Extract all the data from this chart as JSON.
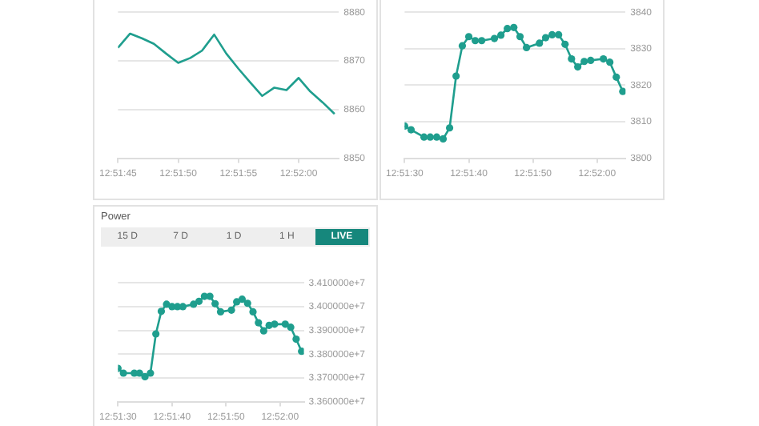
{
  "chart_data": [
    {
      "type": "line",
      "color": "#1f9e8e",
      "marker": "none",
      "line_style": "solid",
      "grid": "y",
      "legend": false,
      "x": [
        12.8625,
        12.86278,
        12.86306,
        12.86333,
        12.86361,
        12.86389,
        12.86417,
        12.86444,
        12.86472,
        12.865,
        12.86528,
        12.86556,
        12.86583,
        12.86611,
        12.86639,
        12.86667,
        12.86694,
        12.86722,
        12.8675
      ],
      "values": [
        8872.7,
        8875.6,
        8874.6,
        8873.5,
        8871.5,
        8869.6,
        8870.6,
        8872.1,
        8875.4,
        8871.5,
        8868.4,
        8865.5,
        8862.8,
        8864.5,
        8864.0,
        8866.5,
        8863.7,
        8861.5,
        8859.1
      ],
      "xlim": [
        12.8625,
        12.8676
      ],
      "xticks": [
        {
          "value": 12.8625,
          "label": "12:51:45"
        },
        {
          "value": 12.86389,
          "label": "12:51:50"
        },
        {
          "value": 12.86528,
          "label": "12:51:55"
        },
        {
          "value": 12.86667,
          "label": "12:52:00"
        }
      ],
      "ylim": [
        8850,
        8880
      ],
      "yticks": [
        8850,
        8860,
        8870,
        8880
      ]
    },
    {
      "type": "line",
      "color": "#1f9e8e",
      "marker": "circle",
      "line_style": "solid",
      "grid": "y",
      "legend": false,
      "x": [
        12.85833,
        12.85861,
        12.85917,
        12.85944,
        12.85972,
        12.86,
        12.86028,
        12.86056,
        12.86083,
        12.86111,
        12.86139,
        12.86167,
        12.86222,
        12.8625,
        12.86278,
        12.86306,
        12.86333,
        12.86361,
        12.86417,
        12.86444,
        12.86472,
        12.865,
        12.86528,
        12.86556,
        12.86583,
        12.86611,
        12.86639,
        12.86694,
        12.86722,
        12.8675,
        12.86778
      ],
      "values": [
        3808.8,
        3807.8,
        3805.8,
        3805.8,
        3805.8,
        3805.3,
        3808.3,
        3822.5,
        3830.8,
        3833.3,
        3832.2,
        3832.2,
        3832.8,
        3833.7,
        3835.5,
        3835.8,
        3833.3,
        3830.3,
        3831.5,
        3833,
        3833.8,
        3833.8,
        3831.2,
        3827.2,
        3825,
        3826.5,
        3826.8,
        3827.2,
        3826.3,
        3822.2,
        3818.3
      ],
      "xlim": [
        12.85833,
        12.8679
      ],
      "xticks": [
        {
          "value": 12.85833,
          "label": "12:51:30"
        },
        {
          "value": 12.86111,
          "label": "12:51:40"
        },
        {
          "value": 12.86389,
          "label": "12:51:50"
        },
        {
          "value": 12.86667,
          "label": "12:52:00"
        }
      ],
      "ylim": [
        3800,
        3840
      ],
      "yticks": [
        3800,
        3810,
        3820,
        3830,
        3840
      ]
    },
    {
      "type": "line",
      "title": "Power",
      "annotations": [
        "15 D",
        "7 D",
        "1 D",
        "1 H",
        "LIVE"
      ],
      "color": "#1f9e8e",
      "marker": "circle",
      "line_style": "solid",
      "grid": "y",
      "legend": false,
      "x": [
        12.85833,
        12.85861,
        12.85917,
        12.85944,
        12.85972,
        12.86,
        12.86028,
        12.86056,
        12.86083,
        12.86111,
        12.86139,
        12.86167,
        12.86222,
        12.8625,
        12.86278,
        12.86306,
        12.86333,
        12.86361,
        12.86417,
        12.86444,
        12.86472,
        12.865,
        12.86528,
        12.86556,
        12.86583,
        12.86611,
        12.86639,
        12.86694,
        12.86722,
        12.8675,
        12.86778
      ],
      "values": [
        33740000,
        33720000,
        33720000,
        33720000,
        33705000,
        33720000,
        33885000,
        33980000,
        34010000,
        34000000,
        34000000,
        34000000,
        34010000,
        34022000,
        34043000,
        34043000,
        34012000,
        33978000,
        33985000,
        34020000,
        34031000,
        34014000,
        33978000,
        33932000,
        33898000,
        33921000,
        33926000,
        33926000,
        33913000,
        33863000,
        33812000
      ],
      "xlim": [
        12.85833,
        12.8679
      ],
      "xticks": [
        {
          "value": 12.85833,
          "label": "12:51:30"
        },
        {
          "value": 12.86111,
          "label": "12:51:40"
        },
        {
          "value": 12.86389,
          "label": "12:51:50"
        },
        {
          "value": 12.86667,
          "label": "12:52:00"
        }
      ],
      "ylim": [
        33600000,
        34100000
      ],
      "yticks": [
        {
          "value": 33600000,
          "label": "3.360000e+7"
        },
        {
          "value": 33700000,
          "label": "3.370000e+7"
        },
        {
          "value": 33800000,
          "label": "3.380000e+7"
        },
        {
          "value": 33900000,
          "label": "3.390000e+7"
        },
        {
          "value": 34000000,
          "label": "3.400000e+7"
        },
        {
          "value": 34100000,
          "label": "3.410000e+7"
        }
      ]
    }
  ]
}
